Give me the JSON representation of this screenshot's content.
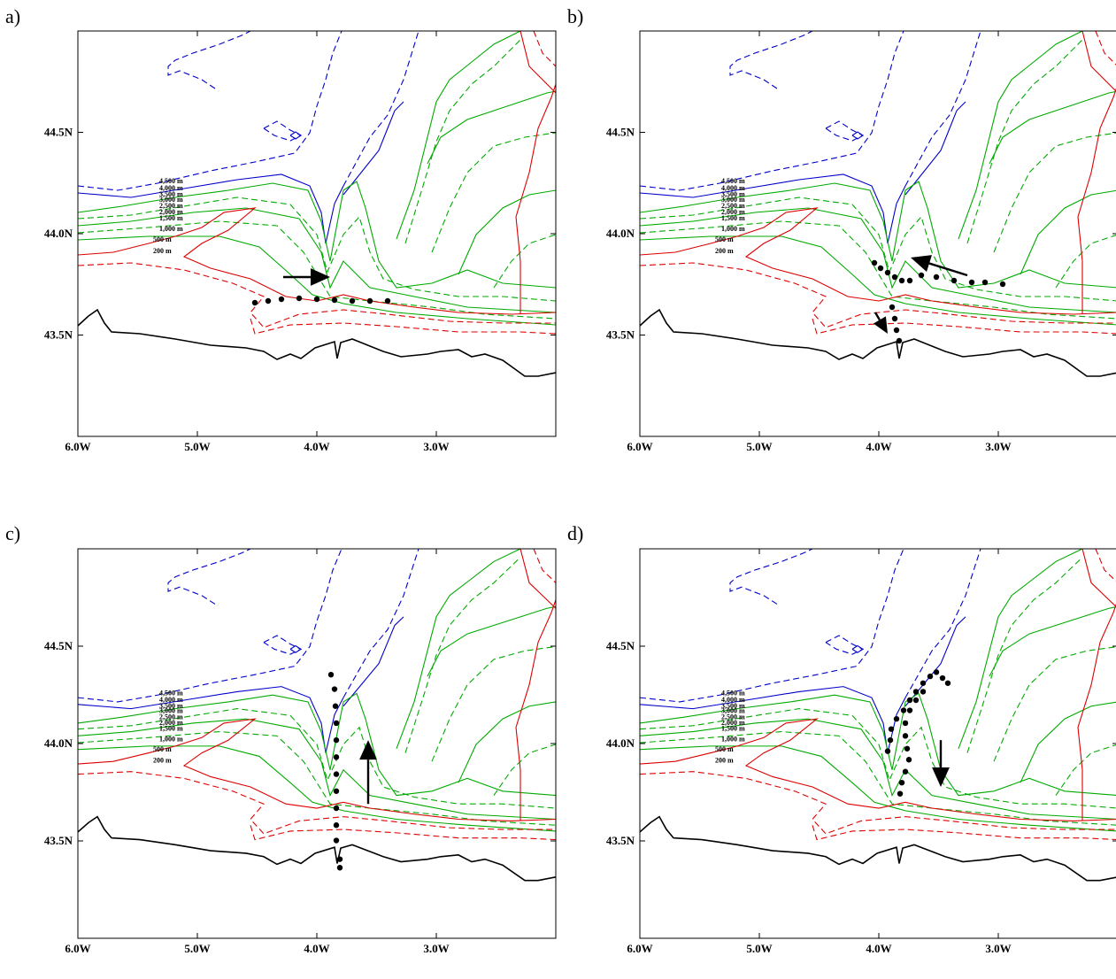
{
  "panels": [
    {
      "id": "a",
      "letter": "a)",
      "arrow": "east"
    },
    {
      "id": "b",
      "letter": "b)",
      "arrow": "west-and-south"
    },
    {
      "id": "c",
      "letter": "c)",
      "arrow": "north"
    },
    {
      "id": "d",
      "letter": "d)",
      "arrow": "south"
    }
  ],
  "axes": {
    "lon_ticks": [
      "6.0W",
      "5.0W",
      "4.0W",
      "3.0W"
    ],
    "lat_ticks": [
      "44.5N",
      "44.0N",
      "43.5N"
    ],
    "lon_range": [
      -6.0,
      -2.0
    ],
    "lat_range": [
      43.0,
      45.0
    ]
  },
  "contour_labels": [
    "4,500 m",
    "4,000 m",
    "3,500 m",
    "3,000 m",
    "2,500 m",
    "2,000 m",
    "1,500 m",
    "1,000 m",
    "500 m",
    "200 m"
  ],
  "colors": {
    "deep": "#0000cc",
    "mid": "#00aa00",
    "shallow": "#dd0000",
    "coast": "#000000",
    "track": "#000000"
  }
}
